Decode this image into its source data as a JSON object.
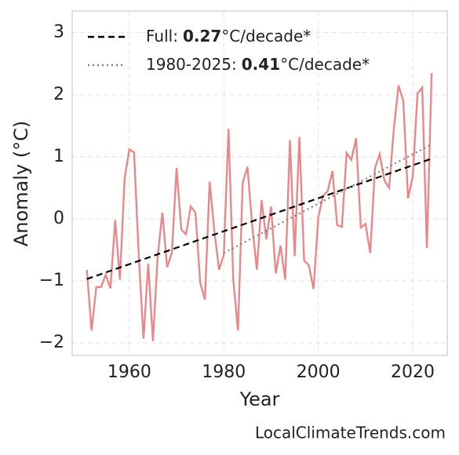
{
  "chart_data": {
    "type": "line",
    "xlabel": "Year",
    "ylabel": "Anomaly (°C)",
    "annotation": "LocalClimateTrends.com",
    "xlim": [
      1947.9,
      2027.3
    ],
    "xticks": [
      1960,
      1980,
      2000,
      2020
    ],
    "ylim": [
      -2.2,
      3.35
    ],
    "yticks": [
      {
        "value": -2,
        "label": "−2"
      },
      {
        "value": -1,
        "label": "−1"
      },
      0,
      1,
      2,
      3
    ],
    "grid": true,
    "legend": "upper left",
    "series": [
      {
        "color": "#e8888b",
        "style": "solid",
        "x": [
          1951,
          1952,
          1953,
          1954,
          1955,
          1956,
          1957,
          1958,
          1959,
          1960,
          1961,
          1962,
          1963,
          1964,
          1965,
          1966,
          1967,
          1968,
          1969,
          1970,
          1971,
          1972,
          1973,
          1974,
          1975,
          1976,
          1977,
          1978,
          1979,
          1980,
          1981,
          1982,
          1983,
          1984,
          1985,
          1986,
          1987,
          1988,
          1989,
          1990,
          1991,
          1992,
          1993,
          1994,
          1995,
          1996,
          1997,
          1998,
          1999,
          2000,
          2001,
          2002,
          2003,
          2004,
          2005,
          2006,
          2007,
          2008,
          2009,
          2010,
          2011,
          2012,
          2013,
          2014,
          2015,
          2016,
          2017,
          2018,
          2019,
          2020,
          2021,
          2022,
          2023,
          2024
        ],
        "values": [
          -0.82,
          -1.8,
          -1.1,
          -1.1,
          -0.9,
          -1.12,
          -0.02,
          -0.98,
          0.65,
          1.12,
          1.07,
          -0.6,
          -1.93,
          -0.72,
          -1.97,
          -0.6,
          0.1,
          -0.78,
          -0.55,
          0.82,
          -0.17,
          -0.25,
          0.2,
          0.1,
          -1.03,
          -1.3,
          0.6,
          -0.2,
          -0.82,
          -0.58,
          1.45,
          -0.98,
          -1.8,
          0.58,
          0.84,
          -0.1,
          -0.82,
          0.3,
          -0.33,
          0.2,
          -0.88,
          -0.43,
          -0.98,
          1.27,
          -0.6,
          1.32,
          -0.67,
          -0.75,
          -1.13,
          0.02,
          0.37,
          0.45,
          0.77,
          -0.1,
          -0.13,
          1.06,
          0.95,
          1.3,
          -0.14,
          -0.08,
          -0.55,
          0.82,
          1.04,
          0.62,
          0.5,
          1.45,
          2.15,
          1.9,
          0.33,
          0.68,
          2.02,
          2.12,
          -0.47,
          2.35
        ]
      },
      {
        "name": "Full:",
        "rate": 0.27,
        "unit": "°C/decade*",
        "color": "#000000",
        "style": "dashed",
        "x": [
          1951,
          2024
        ],
        "values": [
          -0.97,
          0.97
        ]
      },
      {
        "name": "1980-2025:",
        "rate": 0.41,
        "unit": "°C/decade*",
        "color": "#808080",
        "style": "dotted",
        "x": [
          1980,
          2024
        ],
        "values": [
          -0.55,
          1.2
        ]
      }
    ]
  }
}
